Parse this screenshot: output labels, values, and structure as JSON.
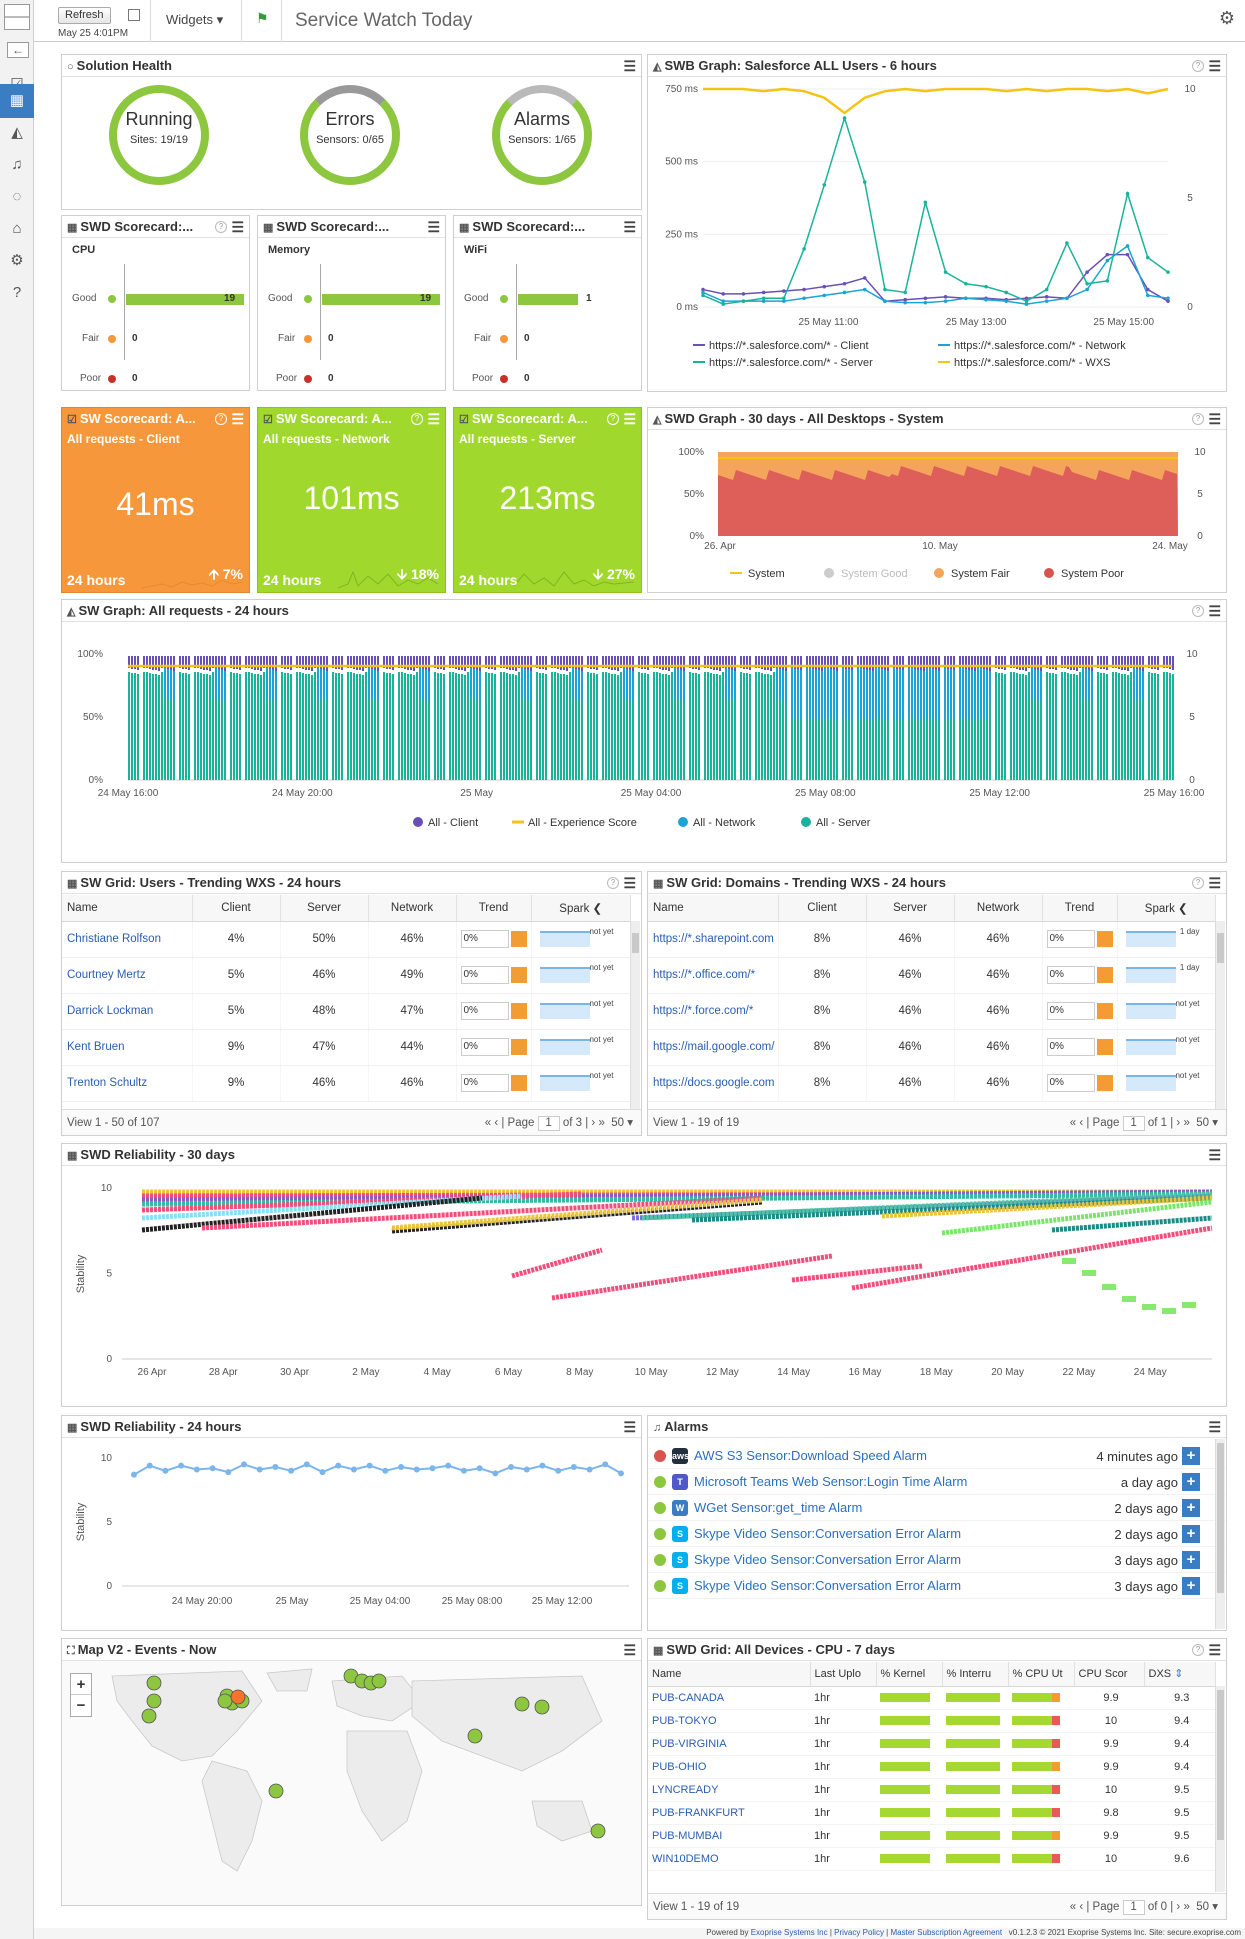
{
  "toolbar": {
    "refresh_label": "Refresh",
    "datetime": "May 25 4:01PM",
    "widgets_label": "Widgets",
    "page_title": "Service Watch Today"
  },
  "solution_health": {
    "title": "Solution Health",
    "rings": [
      {
        "label": "Running",
        "sub": "Sites: 19/19"
      },
      {
        "label": "Errors",
        "sub": "Sensors: 0/65"
      },
      {
        "label": "Alarms",
        "sub": "Sensors: 1/65"
      }
    ]
  },
  "swd_scorecards": [
    {
      "title": "SWD Scorecard:...",
      "metric": "CPU",
      "rows": [
        {
          "label": "Good",
          "value": "19"
        },
        {
          "label": "Fair",
          "value": "0"
        },
        {
          "label": "Poor",
          "value": "0"
        }
      ]
    },
    {
      "title": "SWD Scorecard:...",
      "metric": "Memory",
      "rows": [
        {
          "label": "Good",
          "value": "19"
        },
        {
          "label": "Fair",
          "value": "0"
        },
        {
          "label": "Poor",
          "value": "0"
        }
      ]
    },
    {
      "title": "SWD Scorecard:...",
      "metric": "WiFi",
      "rows": [
        {
          "label": "Good",
          "value": "1"
        },
        {
          "label": "Fair",
          "value": "0"
        },
        {
          "label": "Poor",
          "value": "0"
        }
      ]
    }
  ],
  "sw_scorecards": [
    {
      "title": "SW Scorecard: A...",
      "sub": "All requests - Client",
      "value": "41ms",
      "period": "24 hours",
      "change": "7%",
      "color": "#f5973a"
    },
    {
      "title": "SW Scorecard: A...",
      "sub": "All requests - Network",
      "value": "101ms",
      "period": "24 hours",
      "change": "18%",
      "color": "#a1d82e"
    },
    {
      "title": "SW Scorecard: A...",
      "sub": "All requests - Server",
      "value": "213ms",
      "period": "24 hours",
      "change": "27%",
      "color": "#a1d82e"
    }
  ],
  "chart_data": [
    {
      "type": "line",
      "title": "SWB Graph: Salesforce ALL Users - 6 hours",
      "x_ticks": [
        "25 May 11:00",
        "25 May 13:00",
        "25 May 15:00"
      ],
      "y_ticks": [
        "0 ms",
        "250 ms",
        "500 ms",
        "750 ms"
      ],
      "y2_ticks": [
        "0",
        "5",
        "10"
      ],
      "ylim": [
        0,
        750
      ],
      "y2lim": [
        0,
        10
      ],
      "series": [
        {
          "name": "https://*.salesforce.com/* - Client",
          "color": "#6a4fb6",
          "values": [
            60,
            45,
            45,
            50,
            55,
            60,
            70,
            80,
            100,
            20,
            25,
            30,
            35,
            30,
            30,
            25,
            30,
            35,
            30,
            120,
            180,
            180,
            60,
            20
          ]
        },
        {
          "name": "https://*.salesforce.com/* - Network",
          "color": "#1aa3d4",
          "values": [
            50,
            20,
            20,
            20,
            20,
            30,
            40,
            50,
            60,
            20,
            15,
            15,
            20,
            30,
            25,
            20,
            10,
            20,
            30,
            60,
            160,
            210,
            40,
            30
          ]
        },
        {
          "name": "https://*.salesforce.com/* - Server",
          "color": "#1ab39a",
          "values": [
            40,
            10,
            20,
            30,
            30,
            200,
            420,
            650,
            430,
            60,
            50,
            360,
            120,
            80,
            70,
            50,
            20,
            60,
            220,
            80,
            90,
            390,
            170,
            120
          ]
        },
        {
          "name": "https://*.salesforce.com/* - WXS",
          "color": "#f6c315",
          "axis": "y2",
          "values": [
            10,
            10,
            10,
            9.9,
            10,
            9.9,
            9.6,
            8.9,
            9.6,
            9.9,
            10,
            9.9,
            10,
            10,
            10,
            9.9,
            10,
            9.9,
            10,
            10,
            9.9,
            10,
            9.8,
            10
          ]
        }
      ]
    },
    {
      "type": "area",
      "title": "SWD Graph - 30 days - All Desktops - System",
      "x_ticks": [
        "26. Apr",
        "10. May",
        "24. May"
      ],
      "y_ticks": [
        "0%",
        "50%",
        "100%"
      ],
      "y2_ticks": [
        "0",
        "5",
        "10"
      ],
      "legend": [
        {
          "name": "System",
          "color": "#f6c315"
        },
        {
          "name": "System Good",
          "color": "#cccccc"
        },
        {
          "name": "System Fair",
          "color": "#f5a55b"
        },
        {
          "name": "System Poor",
          "color": "#d9534f"
        }
      ]
    },
    {
      "type": "bar",
      "title": "SW Graph: All requests - 24 hours",
      "x_ticks": [
        "24 May 16:00",
        "24 May 20:00",
        "25 May",
        "25 May 04:00",
        "25 May 08:00",
        "25 May 12:00",
        "25 May 16:00"
      ],
      "y_ticks": [
        "0%",
        "50%",
        "100%"
      ],
      "y2_ticks": [
        "0",
        "5",
        "10"
      ],
      "legend": [
        {
          "name": "All - Client",
          "color": "#6a4fb6"
        },
        {
          "name": "All - Experience Score",
          "color": "#f6c315"
        },
        {
          "name": "All - Network",
          "color": "#1aa3d4"
        },
        {
          "name": "All - Server",
          "color": "#1ab39a"
        }
      ]
    },
    {
      "type": "scatter",
      "title": "SWD Reliability - 30 days",
      "ylabel": "Stability",
      "x_ticks": [
        "26 Apr",
        "28 Apr",
        "30 Apr",
        "2 May",
        "4 May",
        "6 May",
        "8 May",
        "10 May",
        "12 May",
        "14 May",
        "16 May",
        "18 May",
        "20 May",
        "22 May",
        "24 May"
      ],
      "y_ticks": [
        "0",
        "5",
        "10"
      ]
    },
    {
      "type": "line",
      "title": "SWD Reliability - 24 hours",
      "ylabel": "Stability",
      "x_ticks": [
        "24 May 20:00",
        "25 May",
        "25 May 04:00",
        "25 May 08:00",
        "25 May 12:00"
      ],
      "y_ticks": [
        "0",
        "5",
        "10"
      ],
      "ylim": [
        0,
        10
      ],
      "series": [
        {
          "color": "#7cb5ec",
          "values": [
            8.7,
            9.4,
            9.0,
            9.4,
            9.1,
            9.2,
            8.9,
            9.5,
            9.1,
            9.3,
            9.0,
            9.5,
            8.9,
            9.4,
            9.1,
            9.4,
            9.0,
            9.3,
            9.1,
            9.2,
            9.4,
            9.0,
            9.2,
            8.8,
            9.3,
            9.1,
            9.4,
            9.0,
            9.3,
            9.1,
            9.5,
            8.8
          ]
        }
      ]
    }
  ],
  "users_grid": {
    "title": "SW Grid: Users - Trending WXS - 24 hours",
    "columns": [
      "Name",
      "Client",
      "Server",
      "Network",
      "Trend",
      "Spark"
    ],
    "rows": [
      {
        "name": "Christiane Rolfson",
        "client": "4%",
        "server": "50%",
        "network": "46%",
        "trend": "0%",
        "spark": "not yet"
      },
      {
        "name": "Courtney Mertz",
        "client": "5%",
        "server": "46%",
        "network": "49%",
        "trend": "0%",
        "spark": "not yet"
      },
      {
        "name": "Darrick Lockman",
        "client": "5%",
        "server": "48%",
        "network": "47%",
        "trend": "0%",
        "spark": "not yet"
      },
      {
        "name": "Kent Bruen",
        "client": "9%",
        "server": "47%",
        "network": "44%",
        "trend": "0%",
        "spark": "not yet"
      },
      {
        "name": "Trenton Schultz",
        "client": "9%",
        "server": "46%",
        "network": "46%",
        "trend": "0%",
        "spark": "not yet"
      }
    ],
    "view": "View 1 - 50 of 107",
    "page_label": "Page",
    "page": "1",
    "of": "of 3",
    "size": "50"
  },
  "domains_grid": {
    "title": "SW Grid: Domains - Trending WXS - 24 hours",
    "columns": [
      "Name",
      "Client",
      "Server",
      "Network",
      "Trend",
      "Spark"
    ],
    "rows": [
      {
        "name": "https://*.sharepoint.com",
        "client": "8%",
        "server": "46%",
        "network": "46%",
        "trend": "0%",
        "spark": "1 day"
      },
      {
        "name": "https://*.office.com/*",
        "client": "8%",
        "server": "46%",
        "network": "46%",
        "trend": "0%",
        "spark": "1 day"
      },
      {
        "name": "https://*.force.com/*",
        "client": "8%",
        "server": "46%",
        "network": "46%",
        "trend": "0%",
        "spark": "not yet"
      },
      {
        "name": "https://mail.google.com/",
        "client": "8%",
        "server": "46%",
        "network": "46%",
        "trend": "0%",
        "spark": "not yet"
      },
      {
        "name": "https://docs.google.com",
        "client": "8%",
        "server": "46%",
        "network": "46%",
        "trend": "0%",
        "spark": "not yet"
      }
    ],
    "view": "View 1 - 19 of 19",
    "page_label": "Page",
    "page": "1",
    "of": "of 1",
    "size": "50"
  },
  "alarms": {
    "title": "Alarms",
    "items": [
      {
        "name": "AWS S3 Sensor:Download Speed Alarm",
        "time": "4 minutes ago",
        "status": "#d9534f",
        "icon": "aws",
        "icon_color": "#232f3e"
      },
      {
        "name": "Microsoft Teams Web Sensor:Login Time Alarm",
        "time": "a day ago",
        "status": "#8dc63f",
        "icon": "T",
        "icon_color": "#5059c9"
      },
      {
        "name": "WGet Sensor:get_time Alarm",
        "time": "2 days ago",
        "status": "#8dc63f",
        "icon": "W",
        "icon_color": "#3a7dc2"
      },
      {
        "name": "Skype Video Sensor:Conversation Error Alarm",
        "time": "2 days ago",
        "status": "#8dc63f",
        "icon": "S",
        "icon_color": "#00aff0"
      },
      {
        "name": "Skype Video Sensor:Conversation Error Alarm",
        "time": "3 days ago",
        "status": "#8dc63f",
        "icon": "S",
        "icon_color": "#00aff0"
      },
      {
        "name": "Skype Video Sensor:Conversation Error Alarm",
        "time": "3 days ago",
        "status": "#8dc63f",
        "icon": "S",
        "icon_color": "#00aff0"
      }
    ]
  },
  "map": {
    "title": "Map V2 - Events - Now",
    "zoom_in": "+",
    "zoom_out": "−"
  },
  "devices_grid": {
    "title": "SWD Grid: All Devices - CPU - 7 days",
    "columns": [
      "Name",
      "Last Uplo",
      "% Kernel",
      "% Interru",
      "% CPU Ut",
      "CPU Scor",
      "DXS"
    ],
    "rows": [
      {
        "name": "PUB-CANADA",
        "last": "1hr",
        "score": "9.9",
        "dxs": "9.3"
      },
      {
        "name": "PUB-TOKYO",
        "last": "1hr",
        "score": "10",
        "dxs": "9.4"
      },
      {
        "name": "PUB-VIRGINIA",
        "last": "1hr",
        "score": "9.9",
        "dxs": "9.4"
      },
      {
        "name": "PUB-OHIO",
        "last": "1hr",
        "score": "9.9",
        "dxs": "9.4"
      },
      {
        "name": "LYNCREADY",
        "last": "1hr",
        "score": "10",
        "dxs": "9.5"
      },
      {
        "name": "PUB-FRANKFURT",
        "last": "1hr",
        "score": "9.8",
        "dxs": "9.5"
      },
      {
        "name": "PUB-MUMBAI",
        "last": "1hr",
        "score": "9.9",
        "dxs": "9.5"
      },
      {
        "name": "WIN10DEMO",
        "last": "1hr",
        "score": "10",
        "dxs": "9.6"
      }
    ],
    "view": "View 1 - 19 of 19",
    "page_label": "Page",
    "page": "1",
    "of": "of 0",
    "size": "50"
  },
  "footer": {
    "powered": "Powered by",
    "company": "Exoprise Systems Inc",
    "privacy": "Privacy Policy",
    "msa": "Master Subscription Agreement",
    "version": "v0.1.2.3 © 2021 Exoprise Systems Inc.  Site: secure.exoprise.com"
  }
}
